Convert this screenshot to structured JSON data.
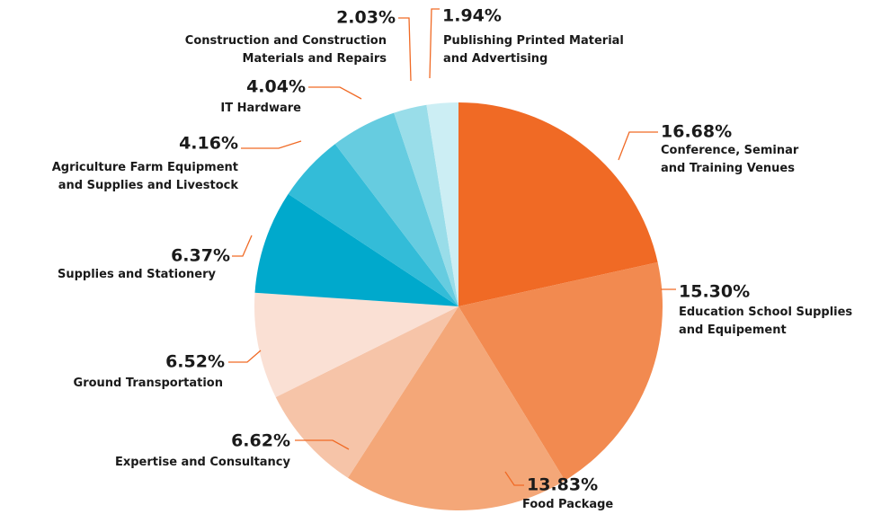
{
  "chart_data": {
    "type": "pie",
    "categories": [
      "Conference, Seminar\nand Training Venues",
      "Education School Supplies\nand Equipement",
      "Food Package",
      "Expertise and Consultancy",
      "Ground Transportation",
      "Supplies and Stationery",
      "Agriculture Farm Equipment\nand Supplies and Livestock",
      "IT Hardware",
      "Construction and Construction\nMaterials and Repairs",
      "Publishing Printed Material\nand Advertising"
    ],
    "values": [
      16.68,
      15.3,
      13.83,
      6.62,
      6.52,
      6.37,
      4.16,
      4.04,
      2.03,
      1.94
    ],
    "value_labels": [
      "16.68%",
      "15.30%",
      "13.83%",
      "6.62%",
      "6.52%",
      "6.37%",
      "4.16%",
      "4.04%",
      "2.03%",
      "1.94%"
    ],
    "colors": [
      "#f06a25",
      "#f28a50",
      "#f4a778",
      "#f6c4a8",
      "#fae0d4",
      "#00a9cc",
      "#33bcd8",
      "#66cce0",
      "#99dde9",
      "#cceef4"
    ]
  }
}
